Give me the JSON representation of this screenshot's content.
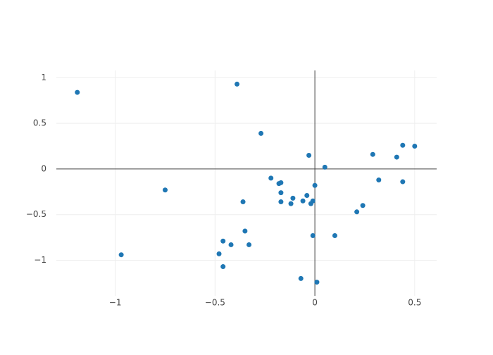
{
  "chart_data": {
    "type": "scatter",
    "color": "#1f77b4",
    "grid": true,
    "zeroline": true,
    "x": [
      -1.19,
      -0.39,
      -0.27,
      -0.75,
      -0.97,
      -0.22,
      -0.18,
      -0.17,
      -0.17,
      -0.17,
      -0.36,
      -0.11,
      -0.12,
      -0.06,
      -0.04,
      -0.03,
      0.0,
      -0.02,
      -0.01,
      0.05,
      -0.01,
      0.1,
      -0.35,
      -0.33,
      -0.42,
      -0.46,
      -0.48,
      -0.46,
      -0.07,
      0.01,
      0.21,
      0.24,
      0.29,
      0.32,
      0.41,
      0.44,
      0.44,
      0.5
    ],
    "y": [
      0.84,
      0.93,
      0.39,
      -0.23,
      -0.94,
      -0.1,
      -0.16,
      -0.15,
      -0.26,
      -0.36,
      -0.36,
      -0.32,
      -0.38,
      -0.35,
      -0.29,
      0.15,
      -0.18,
      -0.38,
      -0.35,
      0.02,
      -0.73,
      -0.73,
      -0.68,
      -0.83,
      -0.83,
      -0.79,
      -0.93,
      -1.07,
      -1.2,
      -1.24,
      -0.47,
      -0.4,
      0.16,
      -0.12,
      0.13,
      0.26,
      -0.14,
      0.25
    ],
    "xlim": [
      -1.295,
      0.61
    ],
    "ylim": [
      -1.39,
      1.08
    ],
    "xticks": [
      {
        "value": -1,
        "label": "−1"
      },
      {
        "value": -0.5,
        "label": "−0.5"
      },
      0,
      0.5
    ],
    "yticks": [
      {
        "value": -1,
        "label": "−1"
      },
      {
        "value": -0.5,
        "label": "−0.5"
      },
      0,
      0.5,
      1
    ]
  }
}
